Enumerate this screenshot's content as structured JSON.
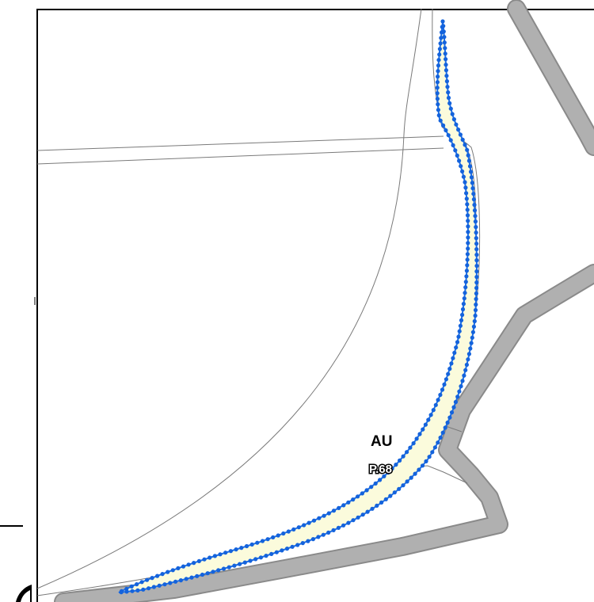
{
  "map": {
    "zone_label": "AU",
    "parcel_label": "P.68",
    "colors": {
      "background": "#ffffff",
      "frame": "#000000",
      "boundary_band": "#b0b0b0",
      "boundary_band_edge": "#8a8a8a",
      "parcel_line": "#7a7a7a",
      "highlight_fill": "#fbfbdc",
      "vertex_stroke": "#1e6ee6",
      "vertex_dot": "#1463dc"
    },
    "icons": [
      "north-arrow-icon"
    ]
  }
}
